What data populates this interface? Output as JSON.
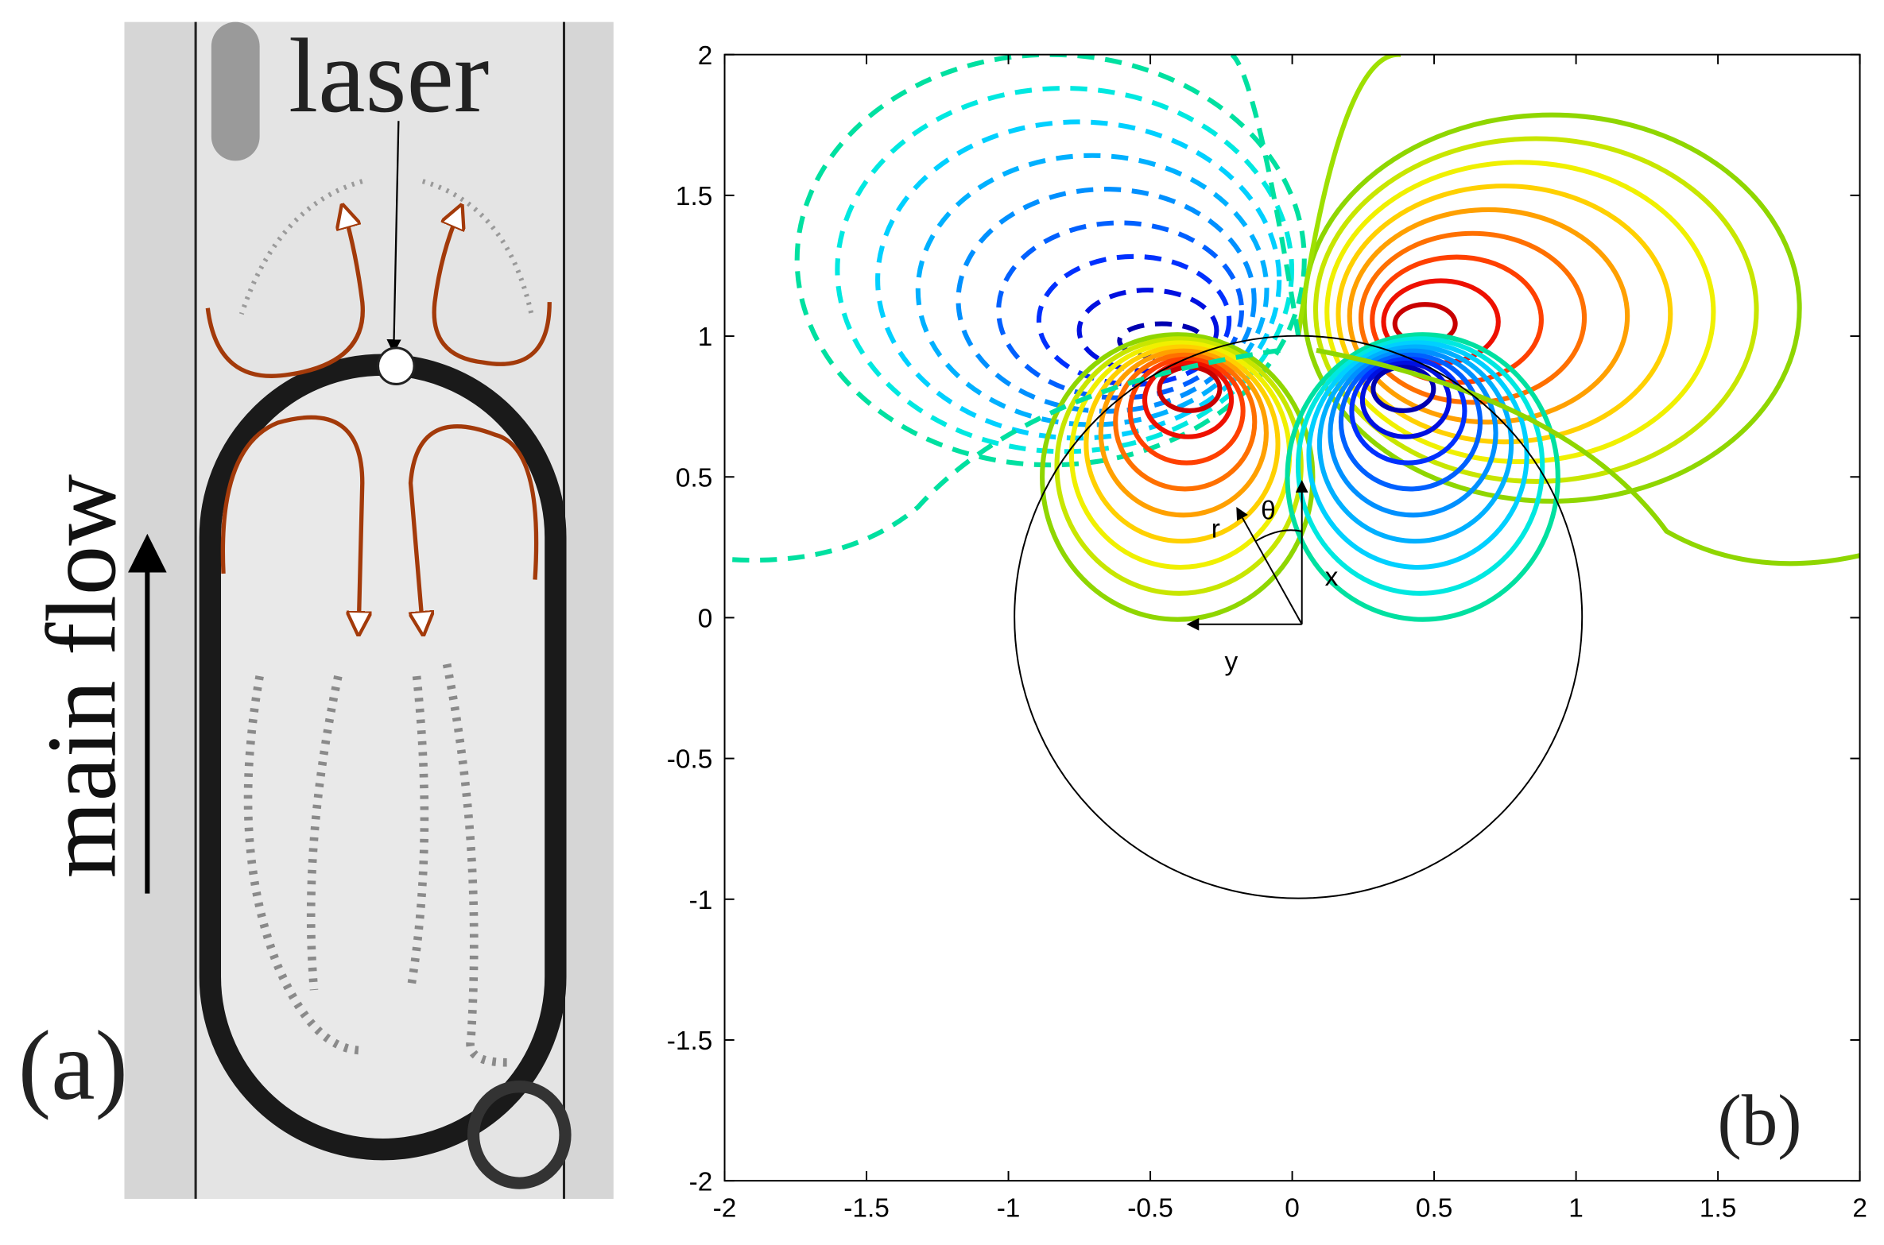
{
  "panel_a": {
    "label": "(a)",
    "laser": "laser",
    "main_flow": "main flow"
  },
  "chart_data": {
    "type": "contour",
    "panel_label": "(b)",
    "xlim": [
      -2,
      2
    ],
    "ylim": [
      -2,
      2
    ],
    "xticks": [
      -2,
      -1.5,
      -1,
      -0.5,
      0,
      0.5,
      1,
      1.5,
      2
    ],
    "yticks": [
      -2,
      -1.5,
      -1,
      -0.5,
      0,
      0.5,
      1,
      1.5,
      2
    ],
    "annotations": [
      "r",
      "θ",
      "x",
      "y"
    ]
  }
}
